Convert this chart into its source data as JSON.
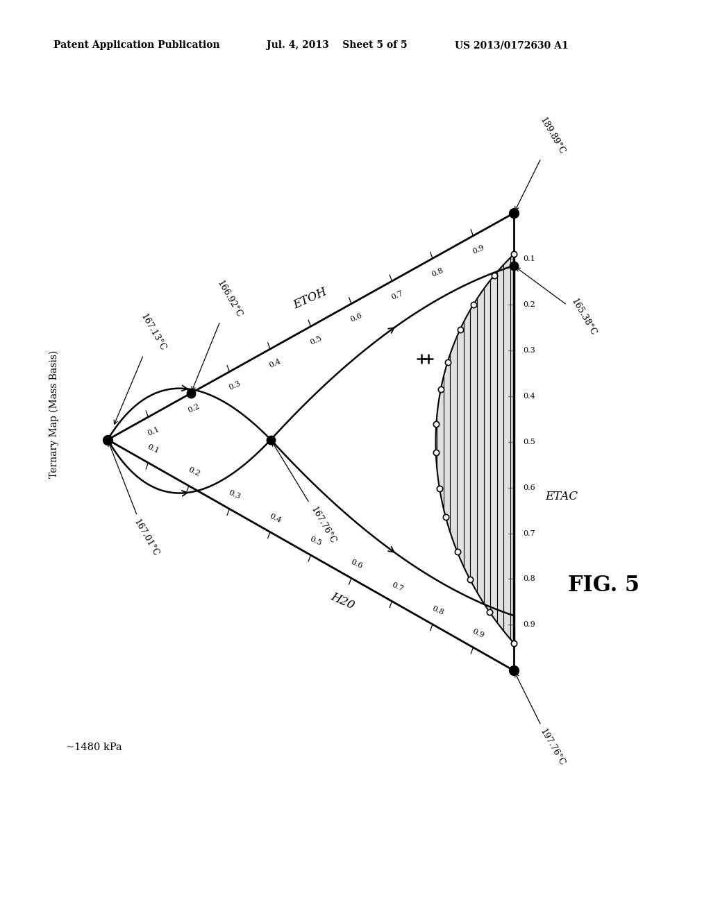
{
  "header_left": "Patent Application Publication",
  "header_mid": "Jul. 4, 2013    Sheet 5 of 5",
  "header_right": "US 2013/0172630 A1",
  "figure_label": "FIG. 5",
  "y_label": "Ternary Map (Mass Basis)",
  "pressure_label": "~1480 kPa",
  "label_etoh": "ETOH",
  "label_h2o": "H20",
  "label_etac": "ETAC",
  "temp_left_bot": "167.01°C",
  "temp_left_top": "167.13°C",
  "temp_azeo_etoh": "166.92°C",
  "temp_saddle": "167.76°C",
  "temp_right_top": "189.89°C",
  "temp_right_mid": "165.38°C",
  "temp_right_bot": "197.76°C",
  "bg": "#ffffff"
}
